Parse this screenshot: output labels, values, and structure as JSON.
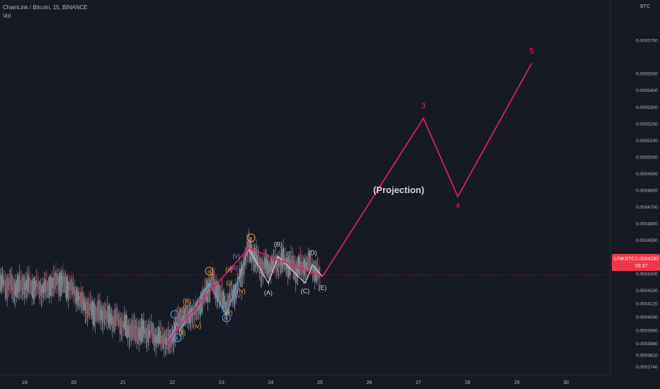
{
  "legend": {
    "title": "ChainLink / Bitcoin, 15, BINANCE",
    "indicator": "Vol"
  },
  "corner_unit": "BTC",
  "price_badge": {
    "symbol": "LINKBTC",
    "price": "0.0004290",
    "countdown": "06:37"
  },
  "colors": {
    "background": "#161a25",
    "projection": "#e91e63",
    "candle": "#8c8f97",
    "candle_down_accent": "#8a2a33",
    "wave_blue": "#5aa9e6",
    "wave_orange": "#f0a03c",
    "wave_white": "#d1d4dc",
    "wave_purple": "#b06ad8",
    "axis_text": "#b2b5be",
    "badge": "#f23645"
  },
  "chart_data": {
    "type": "line",
    "y_axis": {
      "unit": "BTC",
      "ylim": [
        0.000369,
        0.000594
      ],
      "ticks": [
        0.000374,
        0.000381,
        0.000388,
        0.000396,
        0.000404,
        0.000412,
        0.00042,
        0.00043,
        0.00044,
        0.00045,
        0.00046,
        0.00047,
        0.00048,
        0.00049,
        0.0005,
        0.00051,
        0.00052,
        0.00053,
        0.00054,
        0.00055,
        0.00057
      ],
      "tick_labels": [
        "0.0003740",
        "0.0003810",
        "0.0003880",
        "0.0003960",
        "0.0004040",
        "0.0004120",
        "0.0004200",
        "0.0004300",
        "0.0004400",
        "0.0004500",
        "0.0004600",
        "0.0004700",
        "0.0004800",
        "0.0004900",
        "0.0005000",
        "0.0005100",
        "0.0005200",
        "0.0005300",
        "0.0005400",
        "0.0005500",
        "0.0005700"
      ]
    },
    "x_axis": {
      "unit": "day",
      "xlim": [
        18.5,
        30.9
      ],
      "ticks": [
        19,
        20,
        21,
        22,
        23,
        24,
        25,
        26,
        27,
        28,
        29,
        30
      ],
      "tick_labels": [
        "19",
        "20",
        "21",
        "22",
        "23",
        "24",
        "25",
        "26",
        "27",
        "28",
        "29",
        "30"
      ]
    },
    "current_price": 0.000429,
    "price_series": {
      "name": "LINKBTC",
      "points": [
        [
          18.5,
          0.000425
        ],
        [
          18.8,
          0.000421
        ],
        [
          19.1,
          0.000423
        ],
        [
          19.4,
          0.000421
        ],
        [
          19.7,
          0.000425
        ],
        [
          20.0,
          0.00042
        ],
        [
          20.3,
          0.000408
        ],
        [
          20.6,
          0.000405
        ],
        [
          20.9,
          0.000402
        ],
        [
          21.2,
          0.000394
        ],
        [
          21.5,
          0.000395
        ],
        [
          21.8,
          0.000391
        ],
        [
          21.95,
          0.000388
        ],
        [
          22.1,
          0.000399
        ],
        [
          22.3,
          0.000405
        ],
        [
          22.5,
          0.000408
        ],
        [
          22.8,
          0.000425
        ],
        [
          23.1,
          0.00041
        ],
        [
          23.35,
          0.000425
        ],
        [
          23.55,
          0.000445
        ],
        [
          23.8,
          0.000433
        ],
        [
          24.0,
          0.000435
        ],
        [
          24.25,
          0.000438
        ],
        [
          24.5,
          0.000432
        ],
        [
          24.8,
          0.000436
        ],
        [
          25.0,
          0.000428
        ]
      ]
    },
    "projection_path": {
      "name": "(Projection)",
      "points": [
        [
          21.9,
          0.000388
        ],
        [
          22.2,
          0.0004
        ],
        [
          23.55,
          0.000445
        ],
        [
          25.05,
          0.000428
        ],
        [
          27.1,
          0.000523
        ],
        [
          27.8,
          0.000476
        ],
        [
          29.3,
          0.000556
        ]
      ]
    },
    "wave_paths": [
      {
        "color_key": "wave_blue",
        "points": [
          [
            21.9,
            0.000388
          ],
          [
            22.1,
            0.0004
          ],
          [
            22.15,
            0.000396
          ],
          [
            22.75,
            0.000424
          ],
          [
            23.1,
            0.000405
          ],
          [
            23.55,
            0.000445
          ]
        ]
      },
      {
        "color_key": "wave_white",
        "points": [
          [
            23.55,
            0.000445
          ],
          [
            23.95,
            0.000424
          ],
          [
            24.15,
            0.00044
          ],
          [
            24.7,
            0.000424
          ],
          [
            24.85,
            0.000435
          ],
          [
            25.05,
            0.000428
          ]
        ]
      }
    ],
    "annotations": [
      {
        "text": "(Projection)",
        "x": 26.6,
        "y": 0.000478,
        "color_key": "wave_white",
        "size": "large"
      },
      {
        "text": "3",
        "x": 27.1,
        "y": 0.000529,
        "color_key": "projection",
        "size": "medium"
      },
      {
        "text": "4",
        "x": 27.8,
        "y": 0.000469,
        "color_key": "projection",
        "size": "medium"
      },
      {
        "text": "5",
        "x": 29.3,
        "y": 0.000562,
        "color_key": "projection",
        "size": "medium"
      },
      {
        "text": "(B)",
        "x": 24.15,
        "y": 0.000446,
        "color_key": "wave_white",
        "size": "small"
      },
      {
        "text": "(A)",
        "x": 23.95,
        "y": 0.000417,
        "color_key": "wave_white",
        "size": "small"
      },
      {
        "text": "(C)",
        "x": 24.7,
        "y": 0.000418,
        "color_key": "wave_white",
        "size": "small"
      },
      {
        "text": "(D)",
        "x": 24.85,
        "y": 0.000441,
        "color_key": "wave_white",
        "size": "small"
      },
      {
        "text": "(E)",
        "x": 25.05,
        "y": 0.00042,
        "color_key": "wave_white",
        "size": "small"
      },
      {
        "text": "i",
        "x": 22.05,
        "y": 0.000404,
        "color_key": "wave_blue",
        "size": "circled"
      },
      {
        "text": "ii",
        "x": 22.1,
        "y": 0.00039,
        "color_key": "wave_blue",
        "size": "circled"
      },
      {
        "text": "iii",
        "x": 22.75,
        "y": 0.00043,
        "color_key": "wave_orange",
        "size": "circled"
      },
      {
        "text": "iv",
        "x": 23.1,
        "y": 0.000402,
        "color_key": "wave_blue",
        "size": "circled"
      },
      {
        "text": "v",
        "x": 23.6,
        "y": 0.00045,
        "color_key": "wave_orange",
        "size": "circled"
      },
      {
        "text": "(i)",
        "x": 22.2,
        "y": 0.000407,
        "color_key": "wave_orange",
        "size": "small"
      },
      {
        "text": "(ii)",
        "x": 22.2,
        "y": 0.000393,
        "color_key": "wave_orange",
        "size": "small"
      },
      {
        "text": "(iii)",
        "x": 22.3,
        "y": 0.000412,
        "color_key": "wave_orange",
        "size": "small"
      },
      {
        "text": "(iv)",
        "x": 22.5,
        "y": 0.000397,
        "color_key": "wave_orange",
        "size": "small"
      },
      {
        "text": "(v)",
        "x": 23.15,
        "y": 0.000405,
        "color_key": "wave_orange",
        "size": "small"
      },
      {
        "text": "(i)",
        "x": 23.15,
        "y": 0.000423,
        "color_key": "wave_orange",
        "size": "small"
      },
      {
        "text": "(ii)",
        "x": 23.15,
        "y": 0.000431,
        "color_key": "wave_orange",
        "size": "small"
      },
      {
        "text": "(iv)",
        "x": 23.4,
        "y": 0.000418,
        "color_key": "wave_orange",
        "size": "small"
      },
      {
        "text": "(v)",
        "x": 23.35,
        "y": 0.000415,
        "color_key": "wave_purple",
        "size": "small"
      },
      {
        "text": "(iii)",
        "x": 23.25,
        "y": 0.000432,
        "color_key": "wave_purple",
        "size": "small"
      },
      {
        "text": "(v)",
        "x": 23.3,
        "y": 0.000439,
        "color_key": "wave_purple",
        "size": "small"
      }
    ]
  }
}
